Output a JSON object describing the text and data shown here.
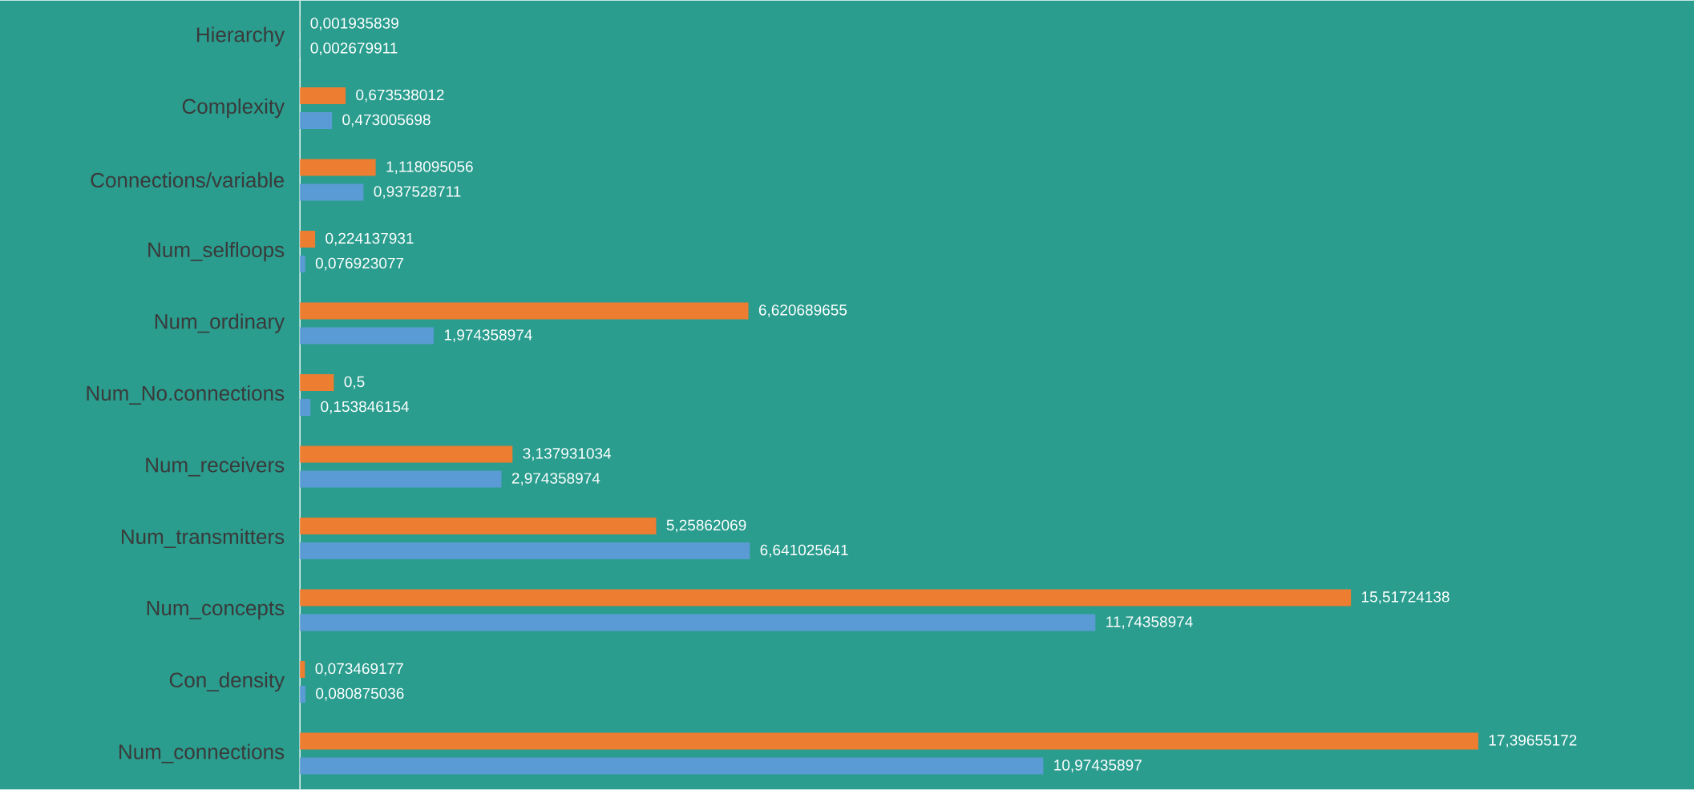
{
  "chart_data": {
    "type": "bar",
    "orientation": "horizontal",
    "categories": [
      "Hierarchy",
      "Complexity",
      "Connections/variable",
      "Num_selfloops",
      "Num_ordinary",
      "Num_No.connections",
      "Num_receivers",
      "Num_transmitters",
      "Num_concepts",
      "Con_density",
      "Num_connections"
    ],
    "series": [
      {
        "color": "#ed7d31",
        "values": [
          0.001935839,
          0.673538012,
          1.118095056,
          0.224137931,
          6.620689655,
          0.5,
          3.137931034,
          5.25862069,
          15.51724138,
          0.073469177,
          17.39655172
        ],
        "value_labels": [
          "0,001935839",
          "0,673538012",
          "1,118095056",
          "0,224137931",
          "6,620689655",
          "0,5",
          "3,137931034",
          "5,25862069",
          "15,51724138",
          "0,073469177",
          "17,39655172"
        ]
      },
      {
        "color": "#5b9bd5",
        "values": [
          0.002679911,
          0.473005698,
          0.937528711,
          0.076923077,
          1.974358974,
          0.153846154,
          2.974358974,
          6.641025641,
          11.74358974,
          0.080875036,
          10.97435897
        ],
        "value_labels": [
          "0,002679911",
          "0,473005698",
          "0,937528711",
          "0,076923077",
          "1,974358974",
          "0,153846154",
          "2,974358974",
          "6,641025641",
          "11,74358974",
          "0,080875036",
          "10,97435897"
        ]
      }
    ]
  }
}
